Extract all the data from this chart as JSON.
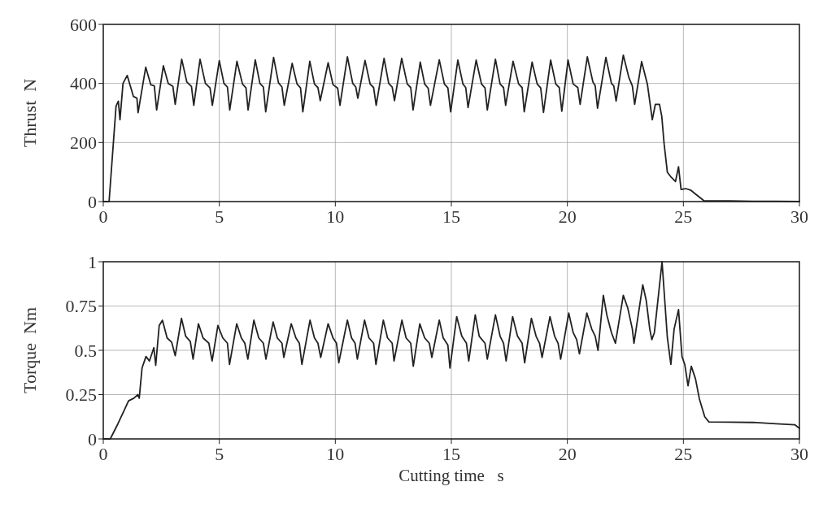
{
  "chart_data": [
    {
      "type": "line",
      "ylabel": "Thrust  N",
      "xlim": [
        0,
        30
      ],
      "xticks": [
        0,
        5,
        10,
        15,
        20,
        25,
        30
      ],
      "ylim": [
        0,
        600
      ],
      "yticks": [
        0,
        200,
        400,
        600
      ],
      "grid": true,
      "line_style": "solid",
      "marker": "none",
      "series": [
        {
          "color": "#222222",
          "x": [
            0,
            0.25,
            0.55,
            0.65,
            0.72,
            0.85,
            1.03,
            1.3,
            1.45,
            1.5,
            1.83,
            2.05,
            2.2,
            2.3,
            2.59,
            2.8,
            3.0,
            3.1,
            3.38,
            3.6,
            3.8,
            3.9,
            4.17,
            4.4,
            4.6,
            4.7,
            5.0,
            5.2,
            5.35,
            5.45,
            5.76,
            6.0,
            6.15,
            6.24,
            6.55,
            6.75,
            6.9,
            7.0,
            7.34,
            7.55,
            7.7,
            7.8,
            8.14,
            8.35,
            8.5,
            8.6,
            8.9,
            9.1,
            9.25,
            9.35,
            9.69,
            9.9,
            10.1,
            10.2,
            10.52,
            10.75,
            10.88,
            10.97,
            11.28,
            11.5,
            11.65,
            11.76,
            12.1,
            12.3,
            12.45,
            12.55,
            12.86,
            13.1,
            13.25,
            13.35,
            13.66,
            13.85,
            14.0,
            14.1,
            14.48,
            14.7,
            14.85,
            14.97,
            15.28,
            15.5,
            15.62,
            15.72,
            16.07,
            16.3,
            16.45,
            16.55,
            16.9,
            17.1,
            17.25,
            17.34,
            17.66,
            17.9,
            18.05,
            18.14,
            18.48,
            18.7,
            18.85,
            18.97,
            19.28,
            19.5,
            19.65,
            19.76,
            20.03,
            20.25,
            20.45,
            20.55,
            20.86,
            21.1,
            21.2,
            21.3,
            21.66,
            21.9,
            22.0,
            22.1,
            22.41,
            22.65,
            22.8,
            22.9,
            23.2,
            23.45,
            23.66,
            23.79,
            23.97,
            24.07,
            24.17,
            24.31,
            24.48,
            24.66,
            24.79,
            24.9,
            25.1,
            25.33,
            25.5,
            25.9,
            27,
            28,
            29,
            30
          ],
          "values": [
            0,
            0,
            323,
            340,
            277,
            400,
            427,
            356,
            350,
            301,
            455,
            395,
            392,
            310,
            460,
            400,
            390,
            329,
            482,
            405,
            390,
            326,
            482,
            400,
            385,
            326,
            477,
            400,
            388,
            310,
            475,
            398,
            385,
            310,
            480,
            400,
            388,
            304,
            488,
            402,
            388,
            326,
            468,
            398,
            385,
            304,
            475,
            398,
            386,
            342,
            470,
            396,
            384,
            326,
            490,
            400,
            388,
            350,
            478,
            398,
            386,
            326,
            485,
            400,
            388,
            342,
            485,
            398,
            386,
            310,
            472,
            398,
            384,
            326,
            480,
            398,
            385,
            304,
            479,
            398,
            386,
            318,
            479,
            398,
            385,
            310,
            482,
            398,
            386,
            326,
            475,
            398,
            386,
            304,
            472,
            398,
            385,
            302,
            479,
            398,
            386,
            306,
            479,
            398,
            386,
            329,
            490,
            405,
            392,
            316,
            488,
            400,
            392,
            340,
            496,
            420,
            392,
            329,
            474,
            397,
            277,
            329,
            329,
            288,
            195,
            99,
            82,
            68,
            118,
            41,
            44,
            38,
            27,
            2,
            2,
            1,
            1,
            0
          ]
        }
      ]
    },
    {
      "type": "line",
      "ylabel": "Torque  Nm",
      "xlabel": "Cutting time   s",
      "xlim": [
        0,
        30
      ],
      "xticks": [
        0,
        5,
        10,
        15,
        20,
        25,
        30
      ],
      "ylim": [
        0,
        1
      ],
      "yticks": [
        0,
        0.25,
        0.5,
        0.75,
        1
      ],
      "grid": true,
      "line_style": "solid",
      "marker": "none",
      "series": [
        {
          "color": "#222222",
          "x": [
            0,
            0.3,
            0.63,
            0.86,
            1.09,
            1.32,
            1.49,
            1.55,
            1.67,
            1.84,
            1.99,
            2.18,
            2.26,
            2.41,
            2.55,
            2.75,
            2.95,
            3.1,
            3.37,
            3.55,
            3.75,
            3.87,
            4.1,
            4.3,
            4.55,
            4.69,
            4.94,
            5.15,
            5.35,
            5.44,
            5.75,
            5.95,
            6.1,
            6.23,
            6.49,
            6.7,
            6.9,
            7.01,
            7.32,
            7.5,
            7.7,
            7.78,
            8.1,
            8.3,
            8.45,
            8.56,
            8.91,
            9.1,
            9.25,
            9.37,
            9.69,
            9.9,
            10.05,
            10.15,
            10.52,
            10.7,
            10.85,
            10.95,
            11.26,
            11.45,
            11.65,
            11.75,
            12.07,
            12.25,
            12.45,
            12.53,
            12.87,
            13.05,
            13.25,
            13.36,
            13.64,
            13.85,
            14.05,
            14.16,
            14.48,
            14.65,
            14.85,
            14.94,
            15.23,
            15.45,
            15.65,
            15.75,
            16.03,
            16.2,
            16.45,
            16.55,
            16.9,
            17.1,
            17.25,
            17.36,
            17.64,
            17.85,
            18.05,
            18.16,
            18.45,
            18.65,
            18.8,
            18.91,
            19.25,
            19.45,
            19.6,
            19.71,
            20.06,
            20.25,
            20.4,
            20.52,
            20.84,
            21.05,
            21.2,
            21.32,
            21.55,
            21.7,
            21.9,
            22.07,
            22.41,
            22.6,
            22.8,
            22.87,
            23.25,
            23.4,
            23.55,
            23.64,
            23.75,
            23.9,
            24.08,
            24.31,
            24.46,
            24.6,
            24.79,
            24.94,
            25.06,
            25.2,
            25.34,
            25.52,
            25.69,
            25.92,
            26.1,
            27,
            28,
            29,
            29.8,
            30
          ],
          "values": [
            0,
            0,
            0.085,
            0.15,
            0.215,
            0.23,
            0.25,
            0.23,
            0.4,
            0.465,
            0.44,
            0.515,
            0.415,
            0.64,
            0.67,
            0.57,
            0.545,
            0.47,
            0.68,
            0.58,
            0.55,
            0.45,
            0.65,
            0.57,
            0.54,
            0.44,
            0.64,
            0.57,
            0.54,
            0.42,
            0.65,
            0.57,
            0.54,
            0.45,
            0.67,
            0.57,
            0.54,
            0.45,
            0.66,
            0.57,
            0.54,
            0.46,
            0.65,
            0.57,
            0.54,
            0.42,
            0.67,
            0.57,
            0.54,
            0.46,
            0.65,
            0.57,
            0.54,
            0.43,
            0.67,
            0.57,
            0.54,
            0.45,
            0.67,
            0.57,
            0.54,
            0.42,
            0.67,
            0.57,
            0.54,
            0.44,
            0.67,
            0.57,
            0.54,
            0.41,
            0.65,
            0.57,
            0.54,
            0.46,
            0.67,
            0.57,
            0.53,
            0.4,
            0.69,
            0.58,
            0.54,
            0.44,
            0.7,
            0.58,
            0.54,
            0.45,
            0.7,
            0.58,
            0.54,
            0.44,
            0.69,
            0.58,
            0.54,
            0.43,
            0.68,
            0.58,
            0.54,
            0.46,
            0.69,
            0.58,
            0.54,
            0.45,
            0.71,
            0.6,
            0.56,
            0.48,
            0.71,
            0.62,
            0.58,
            0.5,
            0.81,
            0.7,
            0.6,
            0.54,
            0.81,
            0.74,
            0.62,
            0.54,
            0.87,
            0.78,
            0.62,
            0.56,
            0.6,
            0.78,
            1.0,
            0.57,
            0.42,
            0.62,
            0.73,
            0.465,
            0.42,
            0.3,
            0.41,
            0.34,
            0.225,
            0.125,
            0.096,
            0.095,
            0.093,
            0.085,
            0.08,
            0.06
          ]
        }
      ]
    }
  ]
}
